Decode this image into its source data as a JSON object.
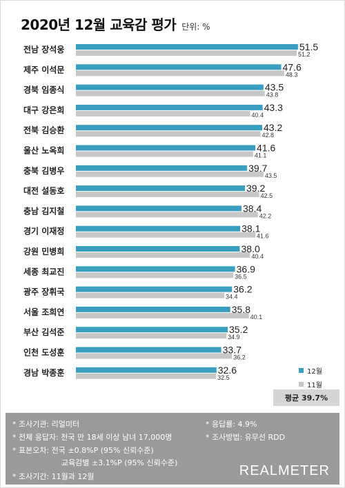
{
  "header": {
    "title": "2020년 12월 교육감 평가",
    "unit": "단위: %"
  },
  "chart_data": {
    "type": "bar",
    "orientation": "horizontal",
    "categories": [
      "전남 장석웅",
      "제주 이석문",
      "경북 임종식",
      "대구 강은희",
      "전북 김승환",
      "울산 노옥희",
      "충북 김병우",
      "대전 설동호",
      "충남 김지철",
      "경기 이재정",
      "강원 민병희",
      "세종 최교진",
      "광주 장휘국",
      "서울 조희연",
      "부산 김석준",
      "인천 도성훈",
      "경남 박종훈"
    ],
    "series": [
      {
        "name": "12월",
        "color": "#3a9fbf",
        "values": [
          "51.5",
          "47.6",
          "43.5",
          "43.3",
          "43.2",
          "41.6",
          "39.7",
          "39.2",
          "38.4",
          "38.1",
          "38.0",
          "36.9",
          "36.2",
          "35.8",
          "35.2",
          "33.7",
          "32.6"
        ]
      },
      {
        "name": "11월",
        "color": "#c7c7c7",
        "values": [
          "51.2",
          "48.3",
          "43.8",
          "40.4",
          "42.8",
          "41.1",
          "43.5",
          "42.5",
          "42.2",
          "41.6",
          "40.4",
          "36.5",
          "34.4",
          "40.1",
          "34.9",
          "36.2",
          "32.5"
        ]
      }
    ],
    "legend_position": "bottom-right",
    "grid": false
  },
  "average": {
    "label": "평균 39.7%"
  },
  "footer": {
    "agency": "* 조사기관: 리얼미터",
    "response_rate": "* 응답률: 4.9%",
    "respondents": "* 전체 응답자: 전국 만 18세 이상 남녀 17,000명",
    "method": "* 조사방법: 유무선 RDD",
    "margin_national": "* 표본오차: 전국 ±0.8%P (95% 신뢰수준)",
    "margin_edu": "교육감별 ±3.1%P (95% 신뢰수준)",
    "period": "* 조사기간: 11월과 12월",
    "brand": "REALMETER"
  }
}
